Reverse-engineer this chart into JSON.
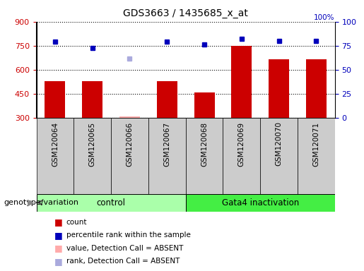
{
  "title": "GDS3663 / 1435685_x_at",
  "samples": [
    "GSM120064",
    "GSM120065",
    "GSM120066",
    "GSM120067",
    "GSM120068",
    "GSM120069",
    "GSM120070",
    "GSM120071"
  ],
  "bar_values": [
    530,
    530,
    310,
    530,
    458,
    750,
    665,
    665
  ],
  "bar_absent": [
    false,
    false,
    true,
    false,
    false,
    false,
    false,
    false
  ],
  "blue_values": [
    79,
    73,
    62,
    79,
    76,
    82,
    80,
    80
  ],
  "blue_absent": [
    false,
    false,
    true,
    false,
    false,
    false,
    false,
    false
  ],
  "ylim_left": [
    300,
    900
  ],
  "ylim_right": [
    0,
    100
  ],
  "yticks_left": [
    300,
    450,
    600,
    750,
    900
  ],
  "yticks_right": [
    0,
    25,
    50,
    75,
    100
  ],
  "bar_color": "#cc0000",
  "bar_absent_color": "#ffaaaa",
  "blue_color": "#0000bb",
  "blue_absent_color": "#aaaadd",
  "groups": [
    {
      "label": "control",
      "start": 0,
      "end": 3,
      "color": "#aaffaa"
    },
    {
      "label": "Gata4 inactivation",
      "start": 4,
      "end": 7,
      "color": "#44ee44"
    }
  ],
  "legend_items": [
    {
      "label": "count",
      "color": "#cc0000"
    },
    {
      "label": "percentile rank within the sample",
      "color": "#0000bb"
    },
    {
      "label": "value, Detection Call = ABSENT",
      "color": "#ffaaaa"
    },
    {
      "label": "rank, Detection Call = ABSENT",
      "color": "#aaaadd"
    }
  ],
  "genotype_label": "genotype/variation",
  "background_color": "#ffffff",
  "plot_bg_color": "#ffffff",
  "xtick_bg_color": "#cccccc"
}
